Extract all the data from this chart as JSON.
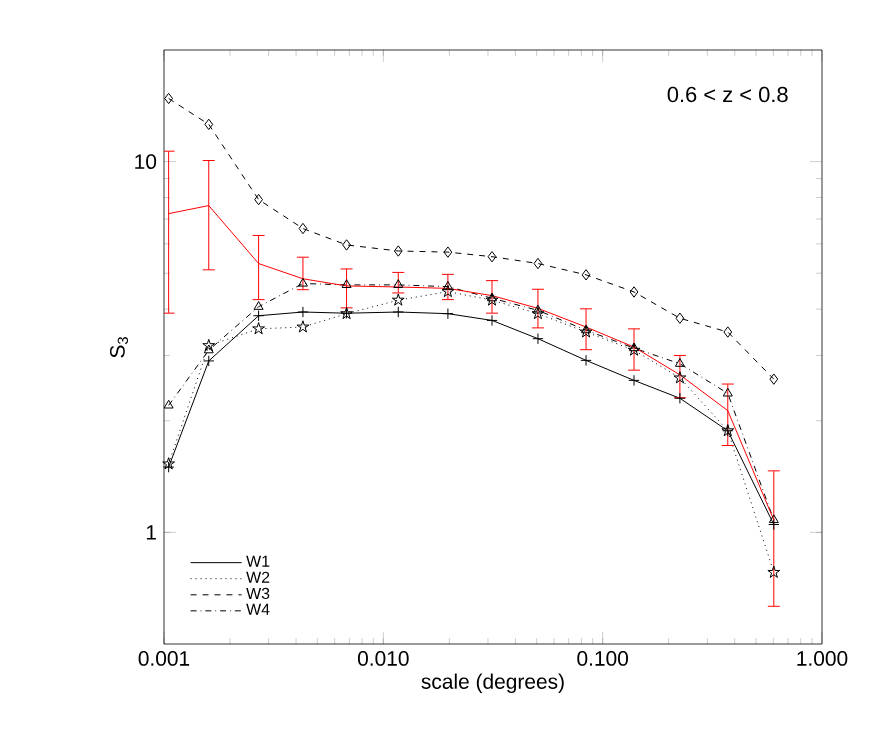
{
  "chart_data": {
    "type": "line",
    "xlabel": "scale (degrees)",
    "ylabel": "S$_{3}$",
    "annotations": [
      "0.6 < z < 0.8"
    ],
    "log": "xy",
    "xlim": [
      0.001,
      1.0
    ],
    "ylim": [
      0.5,
      20
    ],
    "xticks": [
      {
        "value": 0.001,
        "label": "0.001"
      },
      {
        "value": 0.01,
        "label": "0.010"
      },
      {
        "value": 0.1,
        "label": "0.100"
      },
      {
        "value": 1.0,
        "label": "1.000"
      }
    ],
    "yticks": [
      1,
      10
    ],
    "x": [
      0.00105,
      0.0016,
      0.0027,
      0.0043,
      0.0068,
      0.0117,
      0.0197,
      0.0313,
      0.0507,
      0.084,
      0.139,
      0.225,
      0.372,
      0.603
    ],
    "legend": "bottom left",
    "grid": false,
    "series": [
      {
        "name": "W1",
        "color": "#000000",
        "line_style": "solid",
        "marker": "cross",
        "values": [
          1.5,
          2.9,
          3.84,
          3.93,
          3.9,
          3.93,
          3.89,
          3.73,
          3.33,
          2.91,
          2.57,
          2.3,
          1.88,
          1.05
        ]
      },
      {
        "name": "W2",
        "color": "#000000",
        "line_style": "dotted",
        "marker": "star",
        "values": [
          1.53,
          3.19,
          3.54,
          3.58,
          3.89,
          4.23,
          4.46,
          4.23,
          3.89,
          3.47,
          3.1,
          2.61,
          1.88,
          0.78
        ]
      },
      {
        "name": "W3",
        "color": "#000000",
        "line_style": "dashed",
        "marker": "diamond",
        "values": [
          14.8,
          12.6,
          7.9,
          6.6,
          5.96,
          5.74,
          5.7,
          5.54,
          5.31,
          4.95,
          4.45,
          3.78,
          3.47,
          2.59
        ]
      },
      {
        "name": "W4",
        "color": "#000000",
        "line_style": "dashdot",
        "marker": "triangle",
        "values": [
          2.2,
          3.1,
          4.06,
          4.69,
          4.65,
          4.65,
          4.6,
          4.28,
          3.97,
          3.51,
          3.14,
          2.85,
          2.37,
          1.08
        ]
      },
      {
        "color": "#ff0000",
        "line_style": "solid",
        "marker": "none",
        "values": [
          7.24,
          7.61,
          5.31,
          4.83,
          4.62,
          4.59,
          4.55,
          4.35,
          4.02,
          3.58,
          3.16,
          2.66,
          2.13,
          1.08
        ],
        "errors": [
          [
            3.89,
            10.7
          ],
          [
            5.09,
            10.1
          ],
          [
            4.23,
            6.34
          ],
          [
            4.5,
            5.54
          ],
          [
            4.02,
            5.15
          ],
          [
            4.41,
            5.04
          ],
          [
            4.23,
            4.98
          ],
          [
            3.89,
            4.79
          ],
          [
            3.55,
            4.54
          ],
          [
            3.1,
            4.02
          ],
          [
            2.73,
            3.55
          ],
          [
            2.3,
            3.01
          ],
          [
            1.71,
            2.52
          ],
          [
            0.63,
            1.47
          ]
        ]
      }
    ]
  }
}
